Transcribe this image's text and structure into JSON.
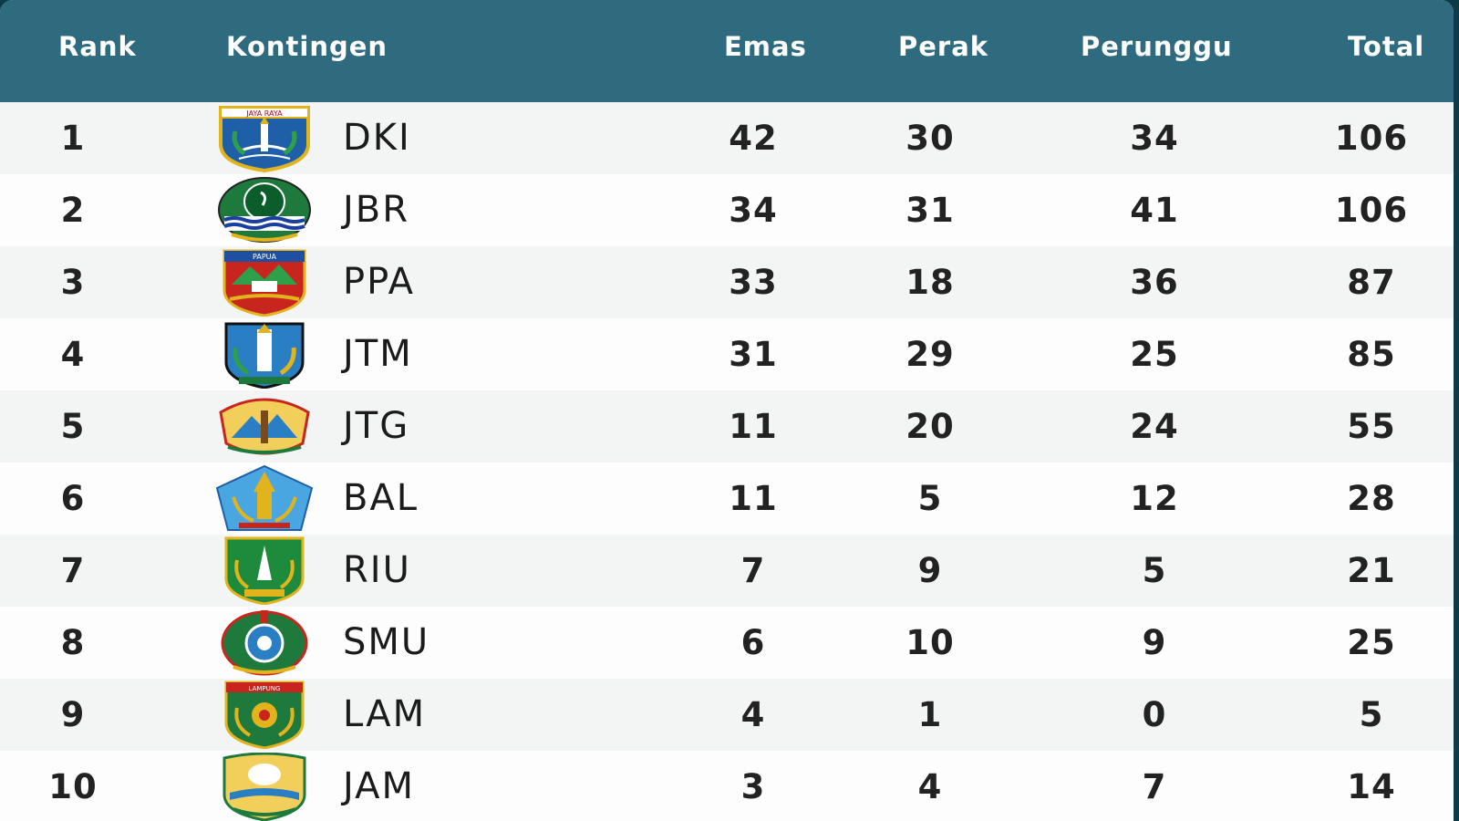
{
  "table": {
    "headers": {
      "rank": "Rank",
      "kontingen": "Kontingen",
      "emas": "Emas",
      "perak": "Perak",
      "perunggu": "Perunggu",
      "total": "Total"
    },
    "header_color": "#2e6b7e",
    "rows": [
      {
        "rank": "1",
        "code": "DKI",
        "emblem": "dki-jakarta-emblem-icon",
        "emas": "42",
        "perak": "30",
        "perunggu": "34",
        "total": "106"
      },
      {
        "rank": "2",
        "code": "JBR",
        "emblem": "jawa-barat-emblem-icon",
        "emas": "34",
        "perak": "31",
        "perunggu": "41",
        "total": "106"
      },
      {
        "rank": "3",
        "code": "PPA",
        "emblem": "papua-emblem-icon",
        "emas": "33",
        "perak": "18",
        "perunggu": "36",
        "total": "87"
      },
      {
        "rank": "4",
        "code": "JTM",
        "emblem": "jawa-timur-emblem-icon",
        "emas": "31",
        "perak": "29",
        "perunggu": "25",
        "total": "85"
      },
      {
        "rank": "5",
        "code": "JTG",
        "emblem": "jawa-tengah-emblem-icon",
        "emas": "11",
        "perak": "20",
        "perunggu": "24",
        "total": "55"
      },
      {
        "rank": "6",
        "code": "BAL",
        "emblem": "bali-emblem-icon",
        "emas": "11",
        "perak": "5",
        "perunggu": "12",
        "total": "28"
      },
      {
        "rank": "7",
        "code": "RIU",
        "emblem": "riau-emblem-icon",
        "emas": "7",
        "perak": "9",
        "perunggu": "5",
        "total": "21"
      },
      {
        "rank": "8",
        "code": "SMU",
        "emblem": "sumatera-utara-emblem-icon",
        "emas": "6",
        "perak": "10",
        "perunggu": "9",
        "total": "25"
      },
      {
        "rank": "9",
        "code": "LAM",
        "emblem": "lampung-emblem-icon",
        "emas": "4",
        "perak": "1",
        "perunggu": "0",
        "total": "5"
      },
      {
        "rank": "10",
        "code": "JAM",
        "emblem": "jambi-emblem-icon",
        "emas": "3",
        "perak": "4",
        "perunggu": "7",
        "total": "14"
      }
    ]
  }
}
